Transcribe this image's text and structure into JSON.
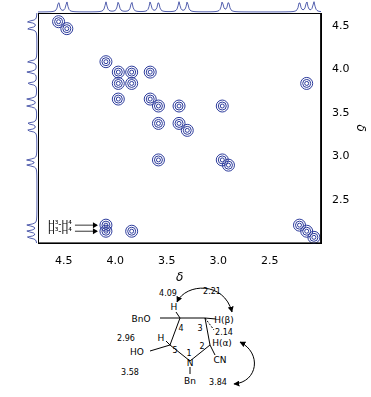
{
  "chart_data": {
    "type": "contour",
    "xlabel": "δ",
    "ylabel": "δ",
    "xlim": [
      4.75,
      2.0
    ],
    "ylim": [
      2.0,
      4.65
    ],
    "xticks": [
      4.5,
      {
        "value": 4,
        "label": "4.0"
      },
      3.5,
      {
        "value": 3,
        "label": "3.0"
      },
      2.5
    ],
    "yticks": [
      2.5,
      {
        "value": 3,
        "label": "3.0"
      },
      3.5,
      {
        "value": 4,
        "label": "4.0"
      },
      4.5
    ],
    "grid": false,
    "color": "#2b3a9b",
    "peaks": [
      {
        "x": 4.55,
        "y": 4.55
      },
      {
        "x": 4.47,
        "y": 4.47
      },
      {
        "x": 4.09,
        "y": 4.09
      },
      {
        "x": 3.97,
        "y": 3.97
      },
      {
        "x": 3.84,
        "y": 3.84
      },
      {
        "x": 3.66,
        "y": 3.66
      },
      {
        "x": 3.58,
        "y": 3.58
      },
      {
        "x": 3.38,
        "y": 3.38
      },
      {
        "x": 3.3,
        "y": 3.3
      },
      {
        "x": 2.96,
        "y": 2.96
      },
      {
        "x": 2.9,
        "y": 2.9
      },
      {
        "x": 2.21,
        "y": 2.21
      },
      {
        "x": 2.14,
        "y": 2.14
      },
      {
        "x": 2.07,
        "y": 2.07
      },
      {
        "x": 4.09,
        "y": 2.21
      },
      {
        "x": 4.09,
        "y": 2.14
      },
      {
        "x": 2.14,
        "y": 3.84
      },
      {
        "x": 3.84,
        "y": 2.14
      },
      {
        "x": 3.58,
        "y": 2.96
      },
      {
        "x": 2.96,
        "y": 3.58
      },
      {
        "x": 3.66,
        "y": 3.97
      },
      {
        "x": 3.97,
        "y": 3.66
      },
      {
        "x": 3.84,
        "y": 3.97
      },
      {
        "x": 3.97,
        "y": 3.84
      },
      {
        "x": 3.38,
        "y": 3.58
      },
      {
        "x": 3.58,
        "y": 3.38
      }
    ],
    "annotations": [
      {
        "text": "H³-H⁴",
        "x": 4.09,
        "y": 2.14
      },
      {
        "text": "H³-H⁴",
        "x": 4.09,
        "y": 2.21
      }
    ]
  },
  "structure": {
    "shift_h4": "4.09",
    "h4": "H",
    "shift_h3b": "2.21",
    "bno": "BnO",
    "h3b": "H(β)",
    "shift_h3a": "2.14",
    "h3a": "H(α)",
    "n4": "4",
    "n3": "3",
    "shift_h5": "2.96",
    "h5": "H",
    "n2": "2",
    "n5": "5",
    "n1": "1",
    "ho": "HO",
    "cn": "CN",
    "shift_ch2": "3.58",
    "n_atom": "N",
    "bn": "Bn",
    "shift_h2": "3.84"
  }
}
